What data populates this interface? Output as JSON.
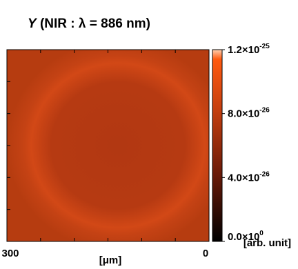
{
  "chart_data": {
    "type": "heatmap",
    "title": [
      "Y",
      "(NIR : λ = 886 nm)"
    ],
    "xlabel": "[μm]",
    "xlim": [
      300,
      0
    ],
    "xticks": [
      300,
      0
    ],
    "colorbar_label": "[arb. unit]",
    "clim": [
      0,
      1.2e-25
    ],
    "cticks": [
      {
        "value": 0,
        "label": [
          "0.0×10",
          "0"
        ]
      },
      {
        "value": 4e-26,
        "label": [
          "4.0×10",
          "-26"
        ]
      },
      {
        "value": 8e-26,
        "label": [
          "8.0×10",
          "-26"
        ]
      },
      {
        "value": 1.2e-25,
        "label": [
          "1.2×10",
          "-25"
        ]
      }
    ]
  }
}
